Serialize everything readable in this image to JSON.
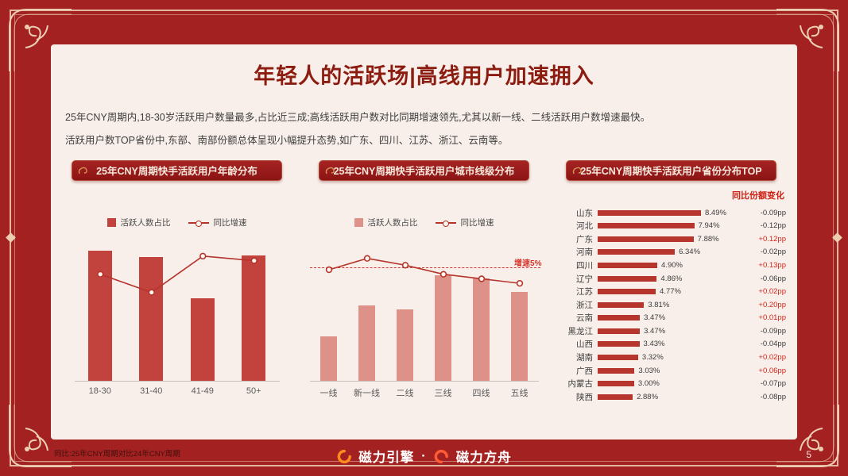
{
  "slide": {
    "title": "年轻人的活跃场|高线用户加速拥入",
    "paragraphs": [
      "25年CNY周期内,18-30岁活跃用户数量最多,占比近三成;高线活跃用户数对比同期增速领先,尤其以新一线、二线活跃用户数增速最快。",
      "活跃用户数TOP省份中,东部、南部份额总体呈现小幅提升态势,如广东、四川、江苏、浙江、云南等。"
    ],
    "footnote": "同比:25年CNY周期对比24年CNY周期",
    "page_number": "5",
    "footer": {
      "brand1": "磁力引擎",
      "separator": "·",
      "brand2": "磁力方舟"
    }
  },
  "colors": {
    "frame_red": "#A32121",
    "panel_cream": "#F8EFEA",
    "banner_red": "#9A1B1B",
    "title_red": "#8C1B10",
    "line_red": "#B5342C",
    "reference_red": "#D4352B",
    "logo_orange": "#FF8A1E",
    "logo_red_orange": "#FF5B35"
  },
  "chart_data": [
    {
      "type": "bar",
      "subtype": "bar+line",
      "title": "25年CNY周期快手活跃用户年龄分布",
      "legend": [
        "活跃人数占比",
        "同比增速"
      ],
      "categories": [
        "18-30",
        "31-40",
        "41-49",
        "50+"
      ],
      "series": [
        {
          "name": "活跃人数占比",
          "type": "bar",
          "unit": "%",
          "values": [
            30,
            28.5,
            19,
            29
          ]
        },
        {
          "name": "同比增速",
          "type": "line",
          "unit": "%",
          "values": [
            4.7,
            3.9,
            5.5,
            5.3
          ]
        }
      ],
      "bar_axis_max": 33,
      "line_axis_max": 6.3,
      "bar_color": "#C2433D",
      "line_color": "#B5342C",
      "grid": false,
      "legend_position": "top"
    },
    {
      "type": "bar",
      "subtype": "bar+line",
      "title": "25年CNY周期快手活跃用户城市线级分布",
      "legend": [
        "活跃人数占比",
        "同比增速"
      ],
      "categories": [
        "一线",
        "新一线",
        "二线",
        "三线",
        "四线",
        "五线"
      ],
      "series": [
        {
          "name": "活跃人数占比",
          "type": "bar",
          "unit": "%",
          "values": [
            6.5,
            11,
            10.5,
            15.5,
            15,
            13
          ]
        },
        {
          "name": "同比增速",
          "type": "line",
          "unit": "%",
          "values": [
            4.9,
            5.4,
            5.1,
            4.7,
            4.5,
            4.3
          ]
        }
      ],
      "reference_line": {
        "value": 5,
        "label": "增速5%"
      },
      "bar_axis_max": 21,
      "line_axis_max": 6.3,
      "bar_color": "#DD9188",
      "line_color": "#B5342C",
      "grid": false,
      "legend_position": "top"
    },
    {
      "type": "bar",
      "orientation": "horizontal",
      "title": "25年CNY周期快手活跃用户省份分布TOP",
      "column_header": "同比份额变化",
      "xlim": [
        0,
        8.49
      ],
      "bar_color": "#B6352D",
      "positive_color": "#D2261A",
      "negative_color": "#3c3c3c",
      "rows": [
        {
          "name": "山东",
          "value": 8.49,
          "share": "8.49%",
          "change": "-0.09pp"
        },
        {
          "name": "河北",
          "value": 7.94,
          "share": "7.94%",
          "change": "-0.12pp"
        },
        {
          "name": "广东",
          "value": 7.88,
          "share": "7.88%",
          "change": "+0.12pp"
        },
        {
          "name": "河南",
          "value": 6.34,
          "share": "6.34%",
          "change": "-0.02pp"
        },
        {
          "name": "四川",
          "value": 4.9,
          "share": "4.90%",
          "change": "+0.13pp"
        },
        {
          "name": "辽宁",
          "value": 4.86,
          "share": "4.86%",
          "change": "-0.06pp"
        },
        {
          "name": "江苏",
          "value": 4.77,
          "share": "4.77%",
          "change": "+0.02pp"
        },
        {
          "name": "浙江",
          "value": 3.81,
          "share": "3.81%",
          "change": "+0.20pp"
        },
        {
          "name": "云南",
          "value": 3.47,
          "share": "3.47%",
          "change": "+0.01pp"
        },
        {
          "name": "黑龙江",
          "value": 3.47,
          "share": "3.47%",
          "change": "-0.09pp"
        },
        {
          "name": "山西",
          "value": 3.43,
          "share": "3.43%",
          "change": "-0.04pp"
        },
        {
          "name": "湖南",
          "value": 3.32,
          "share": "3.32%",
          "change": "+0.02pp"
        },
        {
          "name": "广西",
          "value": 3.03,
          "share": "3.03%",
          "change": "+0.06pp"
        },
        {
          "name": "内蒙古",
          "value": 3.0,
          "share": "3.00%",
          "change": "-0.07pp"
        },
        {
          "name": "陕西",
          "value": 2.88,
          "share": "2.88%",
          "change": "-0.08pp"
        }
      ]
    }
  ]
}
